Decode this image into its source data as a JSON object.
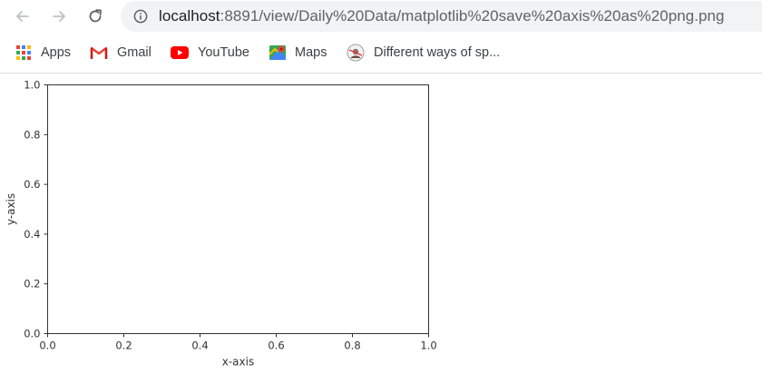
{
  "browser": {
    "url_host": "localhost",
    "url_path": ":8891/view/Daily%20Data/matplotlib%20save%20axis%20as%20png.png"
  },
  "bookmarks": [
    {
      "label": "Apps",
      "icon": "apps-grid-icon"
    },
    {
      "label": "Gmail",
      "icon": "gmail-icon"
    },
    {
      "label": "YouTube",
      "icon": "youtube-icon"
    },
    {
      "label": "Maps",
      "icon": "maps-icon"
    },
    {
      "label": "Different ways of sp...",
      "icon": "site-favicon-icon"
    }
  ],
  "colors": {
    "axis": "#333333",
    "tick_text": "#333333"
  },
  "chart_data": {
    "type": "line",
    "series": [],
    "xlabel": "x-axis",
    "ylabel": "y-axis",
    "xlim": [
      0.0,
      1.0
    ],
    "ylim": [
      0.0,
      1.0
    ],
    "xticks": [
      0.0,
      0.2,
      0.4,
      0.6,
      0.8,
      1.0
    ],
    "yticks": [
      0.0,
      0.2,
      0.4,
      0.6,
      0.8,
      1.0
    ],
    "xtick_labels": [
      "0.0",
      "0.2",
      "0.4",
      "0.6",
      "0.8",
      "1.0"
    ],
    "ytick_labels": [
      "0.0",
      "0.2",
      "0.4",
      "0.6",
      "0.8",
      "1.0"
    ],
    "grid": false
  }
}
